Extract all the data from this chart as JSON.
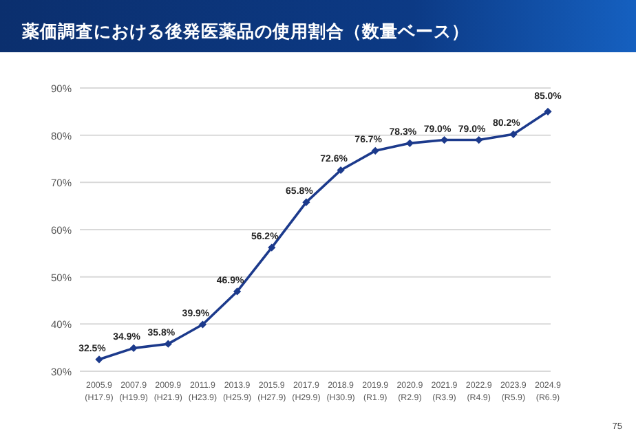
{
  "chart_data": {
    "type": "line",
    "title": "薬価調査における後発医薬品の使用割合（数量ベース）",
    "categories": [
      "2005.9\n(H17.9)",
      "2007.9\n(H19.9)",
      "2009.9\n(H21.9)",
      "2011.9\n(H23.9)",
      "2013.9\n(H25.9)",
      "2015.9\n(H27.9)",
      "2017.9\n(H29.9)",
      "2018.9\n(H30.9)",
      "2019.9\n(R1.9)",
      "2020.9\n(R2.9)",
      "2021.9\n(R3.9)",
      "2022.9\n(R4.9)",
      "2023.9\n(R5.9)",
      "2024.9\n(R6.9)"
    ],
    "series": [
      {
        "color": "#1c3a8c",
        "values": [
          32.5,
          34.9,
          35.8,
          39.9,
          46.9,
          56.2,
          65.8,
          72.6,
          76.7,
          78.3,
          79.0,
          79.0,
          80.2,
          85.0
        ],
        "value_labels": [
          "32.5%",
          "34.9%",
          "35.8%",
          "39.9%",
          "46.9%",
          "56.2%",
          "65.8%",
          "72.6%",
          "76.7%",
          "78.3%",
          "79.0%",
          "79.0%",
          "80.2%",
          "85.0%"
        ]
      }
    ],
    "ylim": [
      30,
      90
    ],
    "yticks": [
      {
        "value": 30,
        "label": "30%"
      },
      {
        "value": 40,
        "label": "40%"
      },
      {
        "value": 50,
        "label": "50%"
      },
      {
        "value": 60,
        "label": "60%"
      },
      {
        "value": 70,
        "label": "70%"
      },
      {
        "value": 80,
        "label": "80%"
      },
      {
        "value": 90,
        "label": "90%"
      }
    ],
    "grid": "y",
    "marker": "diamond",
    "line_style": "solid",
    "annotations": [
      "75"
    ]
  }
}
